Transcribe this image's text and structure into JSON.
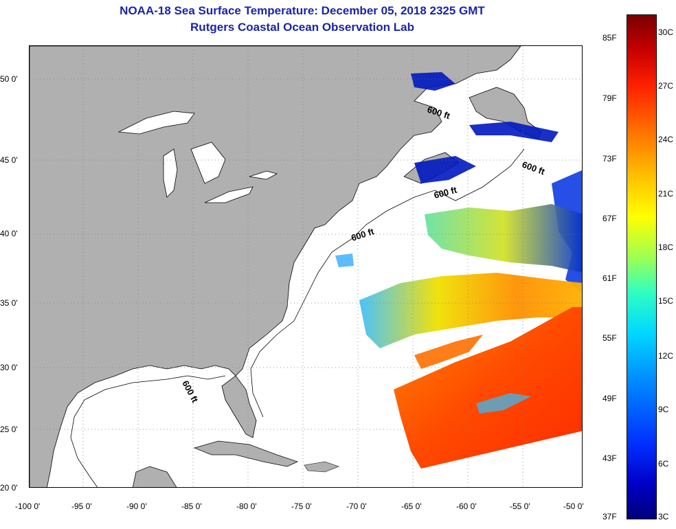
{
  "header": {
    "title_line1": "NOAA-18 Sea Surface Temperature:  December 05, 2018 2325 GMT",
    "title_line2": "Rutgers Coastal Ocean Observation Lab"
  },
  "map": {
    "lon_ticks": [
      "-100 0'",
      "-95 0'",
      "-90 0'",
      "-85 0'",
      "-80 0'",
      "-75 0'",
      "-70 0'",
      "-65 0'",
      "-60 0'",
      "-55 0'",
      "-50 0'"
    ],
    "lat_ticks": [
      "50 0'",
      "45 0'",
      "40 0'",
      "35 0'",
      "30 0'",
      "25 0'",
      "20 0'"
    ],
    "contour_labels": [
      "600 ft",
      "600 ft",
      "600 ft",
      "600 ft",
      "600 ft"
    ],
    "colors": {
      "land": "#b0b0b0",
      "ocean": "#ffffff",
      "grid": "#7a7a7a"
    }
  },
  "colorbar": {
    "fahrenheit": [
      "85F",
      "79F",
      "73F",
      "67F",
      "61F",
      "55F",
      "49F",
      "43F",
      "37F"
    ],
    "celsius": [
      "30C",
      "27C",
      "24C",
      "21C",
      "18C",
      "15C",
      "12C",
      "9C",
      "6C",
      "3C"
    ]
  }
}
